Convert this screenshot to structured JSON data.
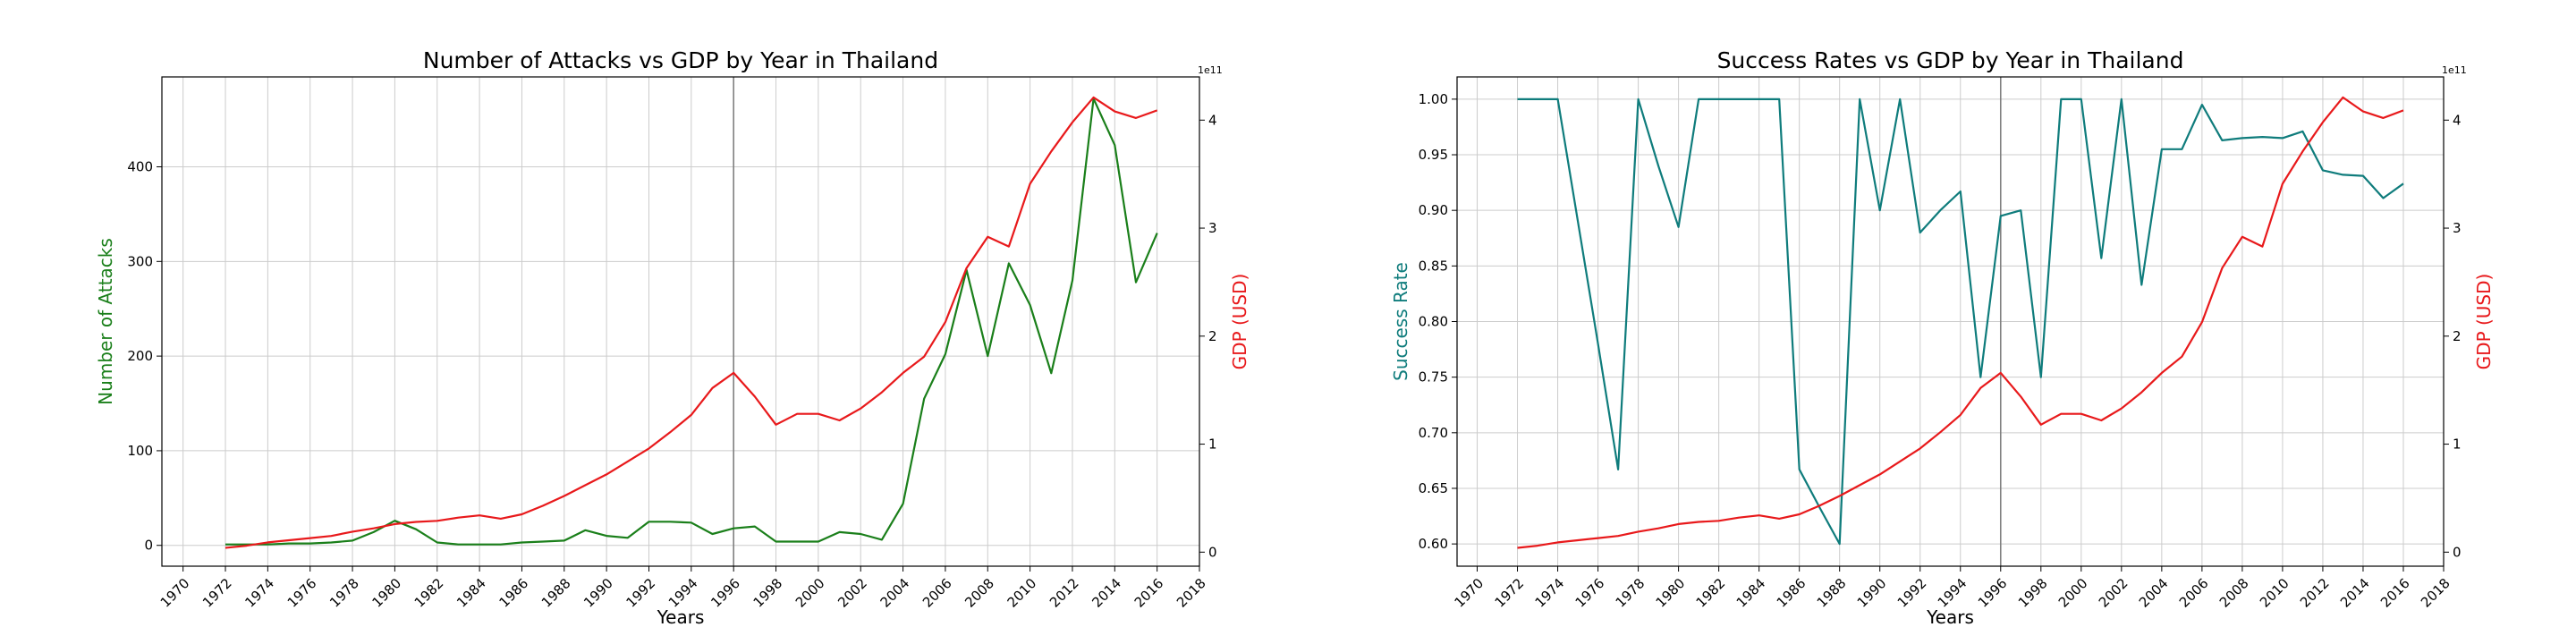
{
  "chart_data": [
    {
      "type": "line",
      "title": "Number of Attacks vs GDP by Year in Thailand",
      "xlabel": "Years",
      "ylabel": "Number of Attacks",
      "y2label": "GDP (USD)",
      "y2_offset_text": "1e11",
      "xlim": [
        1969,
        2018
      ],
      "ylim": [
        -22,
        495
      ],
      "y2lim": [
        -0.13,
        4.4
      ],
      "x_ticks": [
        "1970",
        "1972",
        "1974",
        "1976",
        "1978",
        "1980",
        "1982",
        "1984",
        "1986",
        "1988",
        "1990",
        "1992",
        "1994",
        "1996",
        "1998",
        "2000",
        "2002",
        "2004",
        "2006",
        "2008",
        "2010",
        "2012",
        "2014",
        "2016",
        "2018"
      ],
      "y_ticks": [
        "0",
        "100",
        "200",
        "300",
        "400"
      ],
      "y2_ticks": [
        "0",
        "1",
        "2",
        "3",
        "4"
      ],
      "vline_x": 1996,
      "grid": true,
      "series": [
        {
          "axis": "left",
          "color": "#1a7f1a",
          "x": [
            1972,
            1973,
            1974,
            1975,
            1976,
            1977,
            1978,
            1979,
            1980,
            1981,
            1982,
            1983,
            1984,
            1985,
            1986,
            1987,
            1988,
            1989,
            1990,
            1991,
            1992,
            1993,
            1994,
            1995,
            1996,
            1997,
            1998,
            1999,
            2000,
            2001,
            2002,
            2003,
            2004,
            2005,
            2006,
            2007,
            2008,
            2009,
            2010,
            2011,
            2012,
            2013,
            2014,
            2015,
            2016
          ],
          "values": [
            1,
            1,
            1,
            2,
            2,
            3,
            5,
            14,
            26,
            17,
            3,
            1,
            1,
            1,
            3,
            4,
            5,
            16,
            10,
            8,
            25,
            25,
            24,
            12,
            18,
            20,
            4,
            4,
            4,
            14,
            12,
            6,
            44,
            155,
            202,
            291,
            200,
            298,
            254,
            182,
            280,
            472,
            423,
            278,
            330
          ]
        },
        {
          "axis": "right",
          "color": "#e8191b",
          "x": [
            1972,
            1973,
            1974,
            1975,
            1976,
            1977,
            1978,
            1979,
            1980,
            1981,
            1982,
            1983,
            1984,
            1985,
            1986,
            1987,
            1988,
            1989,
            1990,
            1991,
            1992,
            1993,
            1994,
            1995,
            1996,
            1997,
            1998,
            1999,
            2000,
            2001,
            2002,
            2003,
            2004,
            2005,
            2006,
            2007,
            2008,
            2009,
            2010,
            2011,
            2012,
            2013,
            2014,
            2015,
            2016
          ],
          "values": [
            0.04,
            0.06,
            0.09,
            0.11,
            0.13,
            0.15,
            0.19,
            0.22,
            0.26,
            0.28,
            0.29,
            0.32,
            0.34,
            0.31,
            0.35,
            0.43,
            0.52,
            0.62,
            0.72,
            0.84,
            0.96,
            1.11,
            1.27,
            1.52,
            1.66,
            1.44,
            1.18,
            1.28,
            1.28,
            1.22,
            1.33,
            1.48,
            1.66,
            1.81,
            2.13,
            2.63,
            2.92,
            2.83,
            3.41,
            3.71,
            3.98,
            4.21,
            4.08,
            4.02,
            4.09
          ]
        }
      ]
    },
    {
      "type": "line",
      "title": "Success Rates vs GDP by Year in Thailand",
      "xlabel": "Years",
      "ylabel": "Success Rate",
      "y2label": "GDP (USD)",
      "y2_offset_text": "1e11",
      "xlim": [
        1969,
        2018
      ],
      "ylim": [
        0.58,
        1.02
      ],
      "y2lim": [
        -0.13,
        4.4
      ],
      "x_ticks": [
        "1970",
        "1972",
        "1974",
        "1976",
        "1978",
        "1980",
        "1982",
        "1984",
        "1986",
        "1988",
        "1990",
        "1992",
        "1994",
        "1996",
        "1998",
        "2000",
        "2002",
        "2004",
        "2006",
        "2008",
        "2010",
        "2012",
        "2014",
        "2016",
        "2018"
      ],
      "y_ticks": [
        "0.60",
        "0.65",
        "0.70",
        "0.75",
        "0.80",
        "0.85",
        "0.90",
        "0.95",
        "1.00"
      ],
      "y2_ticks": [
        "0",
        "1",
        "2",
        "3",
        "4"
      ],
      "vline_x": 1996,
      "grid": true,
      "series": [
        {
          "axis": "left",
          "color": "#0f7c7c",
          "x": [
            1972,
            1973,
            1974,
            1975,
            1976,
            1977,
            1978,
            1979,
            1980,
            1981,
            1982,
            1983,
            1984,
            1985,
            1986,
            1987,
            1988,
            1989,
            1990,
            1991,
            1992,
            1993,
            1994,
            1995,
            1996,
            1997,
            1998,
            1999,
            2000,
            2001,
            2002,
            2003,
            2004,
            2005,
            2006,
            2007,
            2008,
            2009,
            2010,
            2011,
            2012,
            2013,
            2014,
            2015,
            2016
          ],
          "values": [
            1.0,
            1.0,
            1.0,
            0.89,
            0.78,
            0.667,
            1.0,
            0.94,
            0.885,
            1.0,
            1.0,
            1.0,
            1.0,
            1.0,
            0.667,
            0.633,
            0.6,
            1.0,
            0.9,
            1.0,
            0.88,
            0.9,
            0.917,
            0.75,
            0.895,
            0.9,
            0.75,
            1.0,
            1.0,
            0.857,
            1.0,
            0.833,
            0.955,
            0.955,
            0.995,
            0.963,
            0.965,
            0.966,
            0.965,
            0.971,
            0.936,
            0.932,
            0.931,
            0.911,
            0.924
          ]
        },
        {
          "axis": "right",
          "color": "#e8191b",
          "x": [
            1972,
            1973,
            1974,
            1975,
            1976,
            1977,
            1978,
            1979,
            1980,
            1981,
            1982,
            1983,
            1984,
            1985,
            1986,
            1987,
            1988,
            1989,
            1990,
            1991,
            1992,
            1993,
            1994,
            1995,
            1996,
            1997,
            1998,
            1999,
            2000,
            2001,
            2002,
            2003,
            2004,
            2005,
            2006,
            2007,
            2008,
            2009,
            2010,
            2011,
            2012,
            2013,
            2014,
            2015,
            2016
          ],
          "values": [
            0.04,
            0.06,
            0.09,
            0.11,
            0.13,
            0.15,
            0.19,
            0.22,
            0.26,
            0.28,
            0.29,
            0.32,
            0.34,
            0.31,
            0.35,
            0.43,
            0.52,
            0.62,
            0.72,
            0.84,
            0.96,
            1.11,
            1.27,
            1.52,
            1.66,
            1.44,
            1.18,
            1.28,
            1.28,
            1.22,
            1.33,
            1.48,
            1.66,
            1.81,
            2.13,
            2.63,
            2.92,
            2.83,
            3.41,
            3.71,
            3.98,
            4.21,
            4.08,
            4.02,
            4.09
          ]
        }
      ]
    }
  ],
  "colors": {
    "ylabel_left_chart_0": "#1a7f1a",
    "ylabel_left_chart_1": "#0f7c7c",
    "ylabel_right": "#e8191b",
    "grid": "#cccccc",
    "vline": "#808080"
  }
}
